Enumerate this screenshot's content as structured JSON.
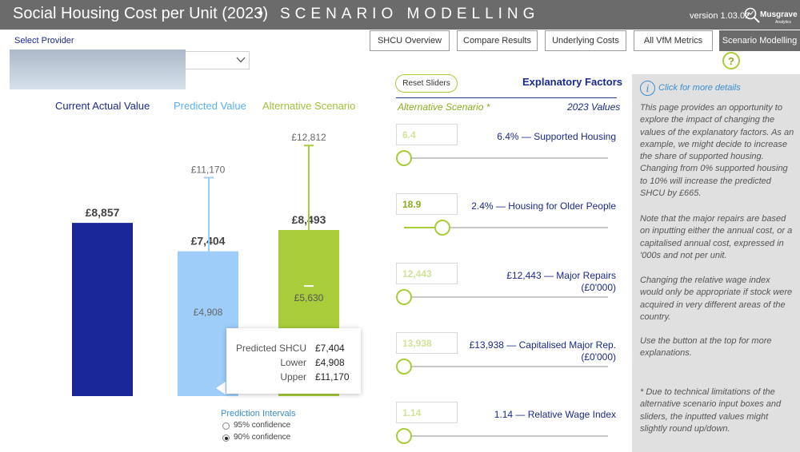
{
  "header": {
    "title": "Social Housing Cost per Unit (2023)",
    "separator": "•",
    "subtitle": "SCENARIO MODELLING",
    "version": "version 1.03.02",
    "logo_name": "Musgrave",
    "logo_tagline": "Analytics"
  },
  "tabs": [
    {
      "label": "SHCU Overview",
      "active": false
    },
    {
      "label": "Compare Results",
      "active": false
    },
    {
      "label": "Underlying Costs",
      "active": false
    },
    {
      "label": "All VfM Metrics",
      "active": false
    },
    {
      "label": "Scenario Modelling",
      "active": true
    }
  ],
  "help_glyph": "?",
  "provider": {
    "label": "Select Provider",
    "selected_value": ""
  },
  "columns": {
    "current": "Current Actual Value",
    "predicted": "Predicted Value",
    "alternative": "Alternative Scenario"
  },
  "colors": {
    "current": "#1a2799",
    "predicted": "#9ecdf9",
    "alternative": "#a8cc3a",
    "navy_text": "#1a2a8a",
    "link_blue": "#3a8ed0"
  },
  "chart_data": {
    "type": "bar",
    "categories": [
      "Current Actual Value",
      "Predicted Value",
      "Alternative Scenario"
    ],
    "values": [
      8857,
      7404,
      8493
    ],
    "value_labels": [
      "£8,857",
      "£7,404",
      "£8,493"
    ],
    "intervals": [
      null,
      {
        "lower": 4908,
        "upper": 11170,
        "lower_label": "£4,908",
        "upper_label": "£11,170"
      },
      {
        "lower": 5630,
        "upper": 12812,
        "lower_label": "£5,630",
        "upper_label": "£12,812"
      }
    ],
    "grid": false,
    "legend": "none"
  },
  "tooltip": {
    "rows": [
      {
        "label": "Predicted SHCU",
        "value": "£7,404"
      },
      {
        "label": "Lower",
        "value": "£4,908"
      },
      {
        "label": "Upper",
        "value": "£11,170"
      }
    ]
  },
  "prediction_intervals": {
    "title": "Prediction Intervals",
    "options": [
      {
        "label": "95% confidence",
        "selected": false
      },
      {
        "label": "90% confidence",
        "selected": true
      }
    ]
  },
  "explanatory": {
    "reset_label": "Reset Sliders",
    "title": "Explanatory Factors",
    "alt_subtitle": "Alternative Scenario *",
    "year_subtitle": "2023 Values",
    "factors": [
      {
        "input": "6.4",
        "label": "6.4% — Supported Housing",
        "label2": "",
        "slider": 0.0,
        "bold_input": false
      },
      {
        "input": "18.9",
        "label": "2.4% — Housing for Older People",
        "label2": "",
        "slider": 0.19,
        "bold_input": true
      },
      {
        "input": "12,443",
        "label": "£12,443 — Major Repairs",
        "label2": "(£0'000)",
        "slider": 0.0,
        "bold_input": false
      },
      {
        "input": "13,938",
        "label": "£13,938 — Capitalised Major Rep.",
        "label2": "(£0'000)",
        "slider": 0.0,
        "bold_input": false
      },
      {
        "input": "1.14",
        "label": "1.14 — Relative Wage Index",
        "label2": "",
        "slider": 0.0,
        "bold_input": false
      }
    ]
  },
  "info_panel": {
    "icon_glyph": "i",
    "link": "Click for more details",
    "p1": "This page provides an opportunity to explore the impact of changing the values of the explanatory factors. As an example, we might decide to increase the share of supported housing. Changing from 0% supported housing to 10% will increase the predicted SHCU by £665.",
    "p2": "Note that the major repairs are based on inputting either the annual cost, or a capitalised annual cost, expressed in '000s and not per unit.",
    "p3": "Changing the relative wage index would only be appropriate if stock were acquired in very different areas of the country.",
    "p4": "Use the button at the top for more explanations.",
    "p5": "* Due to technical limitations of the alternative scenario input boxes and sliders, the inputted values might slightly round up/down."
  }
}
